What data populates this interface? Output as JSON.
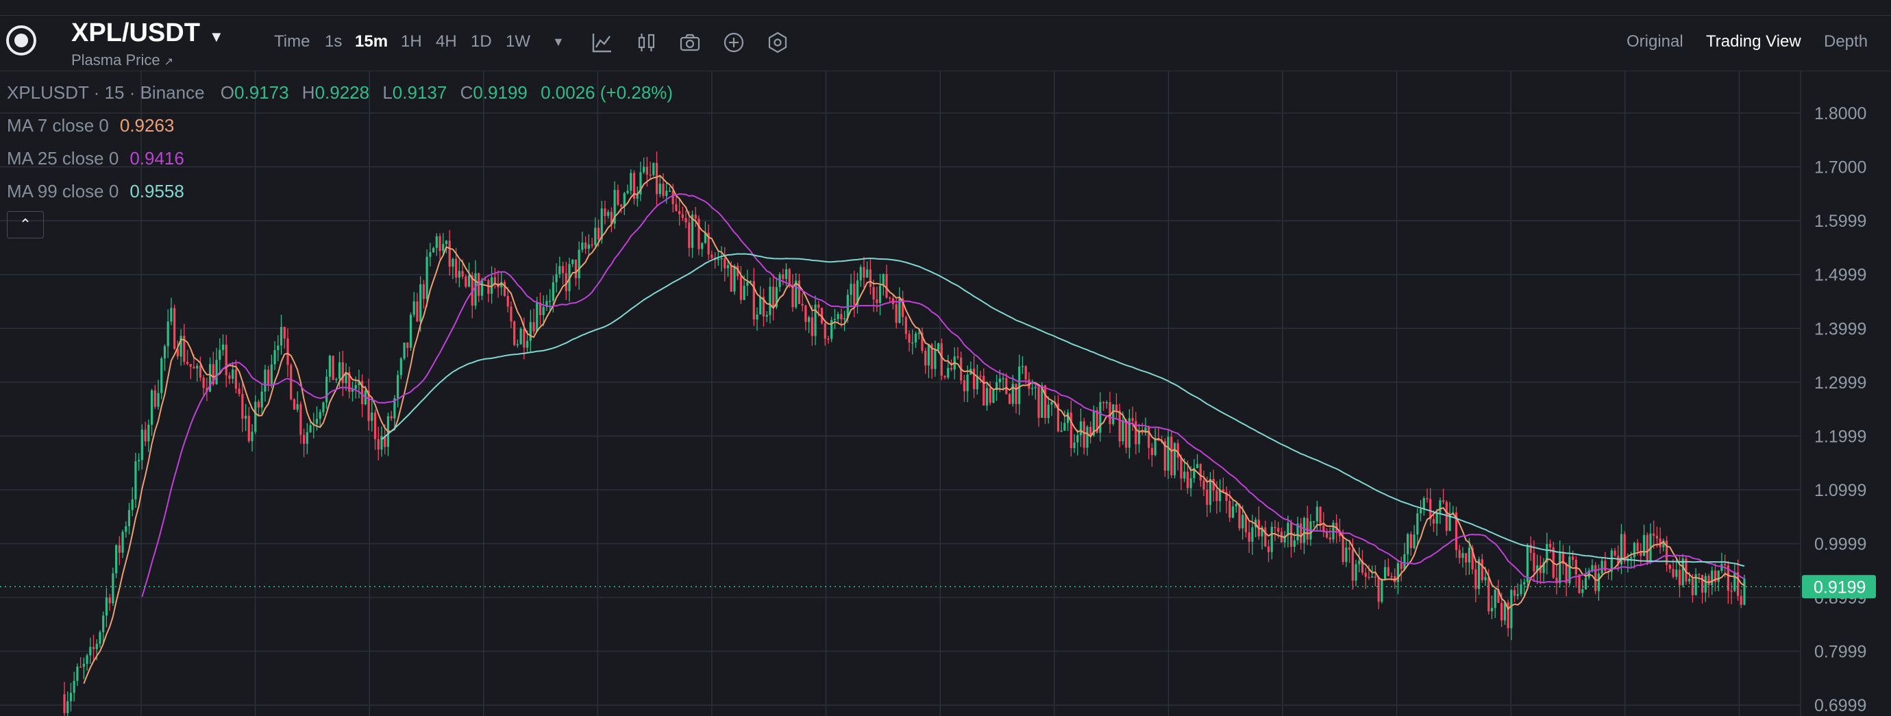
{
  "header": {
    "symbol": "XPL/USDT",
    "subtitle": "Plasma Price",
    "subtitle_arrow": "↗",
    "timeframes": [
      "Time",
      "1s",
      "15m",
      "1H",
      "4H",
      "1D",
      "1W"
    ],
    "active_timeframe": "15m",
    "views": [
      "Original",
      "Trading View",
      "Depth"
    ],
    "active_view": "Trading View"
  },
  "legend": {
    "pair": "XPLUSDT · 15 · Binance",
    "open_label": "O",
    "open": "0.9173",
    "high_label": "H",
    "high": "0.9228",
    "low_label": "L",
    "low": "0.9137",
    "close_label": "C",
    "close": "0.9199",
    "change": "0.0026 (+0.28%)",
    "ma7_label": "MA 7 close 0",
    "ma7": "0.9263",
    "ma25_label": "MA 25 close 0",
    "ma25": "0.9416",
    "ma99_label": "MA 99 close 0",
    "ma99": "0.9558"
  },
  "colors": {
    "up": "#2ebd85",
    "down": "#f6465d",
    "ma7": "#f0a070",
    "ma25": "#c040d8",
    "ma99": "#80d8d0",
    "price_tag": "#2ebd85",
    "background": "#181a20",
    "grid": "#2b3139"
  },
  "chart_data": {
    "type": "candlestick",
    "price_axis_ticks": [
      "1.8000",
      "1.7000",
      "1.5999",
      "1.4999",
      "1.3999",
      "1.2999",
      "1.1999",
      "1.0999",
      "0.9999",
      "0.8999",
      "0.7999",
      "0.6999"
    ],
    "last_price": "0.9199",
    "y_range": [
      0.67,
      1.875
    ],
    "approx_close_path": [
      0.72,
      0.78,
      0.98,
      1.2,
      1.41,
      1.3,
      1.34,
      1.2,
      1.4,
      1.2,
      1.32,
      1.28,
      1.18,
      1.4,
      1.57,
      1.46,
      1.5,
      1.38,
      1.46,
      1.5,
      1.58,
      1.66,
      1.68,
      1.6,
      1.56,
      1.5,
      1.44,
      1.48,
      1.42,
      1.4,
      1.5,
      1.46,
      1.38,
      1.33,
      1.3,
      1.28,
      1.3,
      1.24,
      1.2,
      1.24,
      1.2,
      1.18,
      1.14,
      1.1,
      1.06,
      1.0,
      1.02,
      1.04,
      0.98,
      0.92,
      0.94,
      1.06,
      1.04,
      0.94,
      0.86,
      0.98,
      0.96,
      0.92,
      0.98,
      1.0,
      0.98,
      0.92,
      0.93,
      0.92
    ]
  }
}
